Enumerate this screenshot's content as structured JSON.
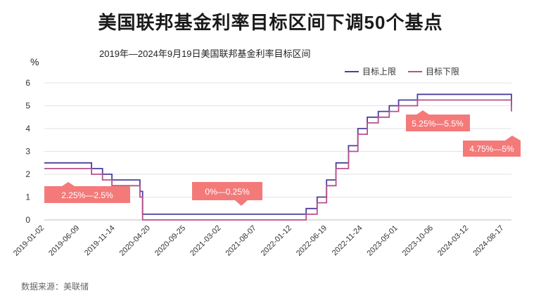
{
  "title": "美国联邦基金利率目标区间下调50个基点",
  "subtitle": "2019年—2024年9月19日美国联邦基金利率目标区间",
  "source": "数据来源：美联储",
  "colors": {
    "upper": "#4b3f9e",
    "lower": "#b8508a",
    "callout": "#f47a7a"
  },
  "chart_data": {
    "type": "line",
    "ylabel": "%",
    "ylim": [
      0,
      6
    ],
    "yticks": [
      "0",
      "1",
      "2",
      "3",
      "4",
      "5",
      "6"
    ],
    "xlim": [
      "2019-01-02",
      "2024-09-19"
    ],
    "xticks": [
      "2019-01-02",
      "2019-06-09",
      "2019-11-14",
      "2020-04-20",
      "2020-09-25",
      "2021-03-02",
      "2021-08-07",
      "2022-01-12",
      "2022-06-19",
      "2022-11-24",
      "2023-05-01",
      "2023-10-06",
      "2024-03-12",
      "2024-08-17"
    ],
    "grid": true,
    "legend_position": "top-right",
    "series": [
      {
        "name": "目标上限",
        "step": true,
        "points": [
          [
            "2019-01-02",
            2.5
          ],
          [
            "2019-08-01",
            2.25
          ],
          [
            "2019-09-19",
            2.0
          ],
          [
            "2019-10-31",
            1.75
          ],
          [
            "2020-03-04",
            1.25
          ],
          [
            "2020-03-16",
            0.25
          ],
          [
            "2022-03-17",
            0.5
          ],
          [
            "2022-05-05",
            1.0
          ],
          [
            "2022-06-16",
            1.75
          ],
          [
            "2022-07-28",
            2.5
          ],
          [
            "2022-09-22",
            3.25
          ],
          [
            "2022-11-03",
            4.0
          ],
          [
            "2022-12-15",
            4.5
          ],
          [
            "2023-02-02",
            4.75
          ],
          [
            "2023-03-23",
            5.0
          ],
          [
            "2023-05-04",
            5.25
          ],
          [
            "2023-07-27",
            5.5
          ],
          [
            "2024-09-19",
            5.0
          ]
        ]
      },
      {
        "name": "目标下限",
        "step": true,
        "points": [
          [
            "2019-01-02",
            2.25
          ],
          [
            "2019-08-01",
            2.0
          ],
          [
            "2019-09-19",
            1.75
          ],
          [
            "2019-10-31",
            1.5
          ],
          [
            "2020-03-04",
            1.0
          ],
          [
            "2020-03-16",
            0.0
          ],
          [
            "2022-03-17",
            0.25
          ],
          [
            "2022-05-05",
            0.75
          ],
          [
            "2022-06-16",
            1.5
          ],
          [
            "2022-07-28",
            2.25
          ],
          [
            "2022-09-22",
            3.0
          ],
          [
            "2022-11-03",
            3.75
          ],
          [
            "2022-12-15",
            4.25
          ],
          [
            "2023-02-02",
            4.5
          ],
          [
            "2023-03-23",
            4.75
          ],
          [
            "2023-05-04",
            5.0
          ],
          [
            "2023-07-27",
            5.25
          ],
          [
            "2024-09-19",
            4.75
          ]
        ]
      }
    ],
    "annotations": [
      {
        "text": "2.25%—2.5%",
        "pointer": "up"
      },
      {
        "text": "0%—0.25%",
        "pointer": "down"
      },
      {
        "text": "5.25%—5.5%",
        "pointer": "up"
      },
      {
        "text": "4.75%—5%",
        "pointer": "up"
      }
    ]
  }
}
